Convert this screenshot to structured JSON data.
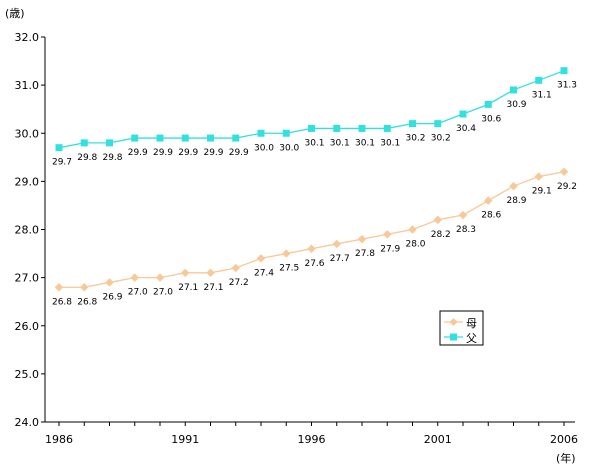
{
  "chart_data": {
    "type": "line",
    "y_unit_label": "(歳)",
    "x_unit_label": "(年)",
    "x": [
      1986,
      1987,
      1988,
      1989,
      1990,
      1991,
      1992,
      1993,
      1994,
      1995,
      1996,
      1997,
      1998,
      1999,
      2000,
      2001,
      2002,
      2003,
      2004,
      2005,
      2006
    ],
    "x_tick_labels": [
      "1986",
      "1991",
      "1996",
      "2001",
      "2006"
    ],
    "y_tick_labels": [
      "24.0",
      "25.0",
      "26.0",
      "27.0",
      "28.0",
      "29.0",
      "30.0",
      "31.0",
      "32.0"
    ],
    "ylim": [
      24.0,
      32.0
    ],
    "grid": false,
    "legend_position": "right-middle",
    "series": [
      {
        "name": "母",
        "color": "#f8c898",
        "marker": "diamond",
        "values": [
          26.8,
          26.8,
          26.9,
          27.0,
          27.0,
          27.1,
          27.1,
          27.2,
          27.4,
          27.5,
          27.6,
          27.7,
          27.8,
          27.9,
          28.0,
          28.2,
          28.3,
          28.6,
          28.9,
          29.1,
          29.2
        ],
        "labels": [
          "26.8",
          "26.8",
          "26.9",
          "27.0",
          "27.0",
          "27.1",
          "27.1",
          "27.2",
          "27.4",
          "27.5",
          "27.6",
          "27.7",
          "27.8",
          "27.9",
          "28.0",
          "28.2",
          "28.3",
          "28.6",
          "28.9",
          "29.1",
          "29.2"
        ]
      },
      {
        "name": "父",
        "color": "#33e0e0",
        "marker": "square",
        "values": [
          29.7,
          29.8,
          29.8,
          29.9,
          29.9,
          29.9,
          29.9,
          29.9,
          30.0,
          30.0,
          30.1,
          30.1,
          30.1,
          30.1,
          30.2,
          30.2,
          30.4,
          30.6,
          30.9,
          31.1,
          31.3
        ],
        "labels": [
          "29.7",
          "29.8",
          "29.8",
          "29.9",
          "29.9",
          "29.9",
          "29.9",
          "29.9",
          "30.0",
          "30.0",
          "30.1",
          "30.1",
          "30.1",
          "30.1",
          "30.2",
          "30.2",
          "30.4",
          "30.6",
          "30.9",
          "31.1",
          "31.3"
        ]
      }
    ]
  }
}
